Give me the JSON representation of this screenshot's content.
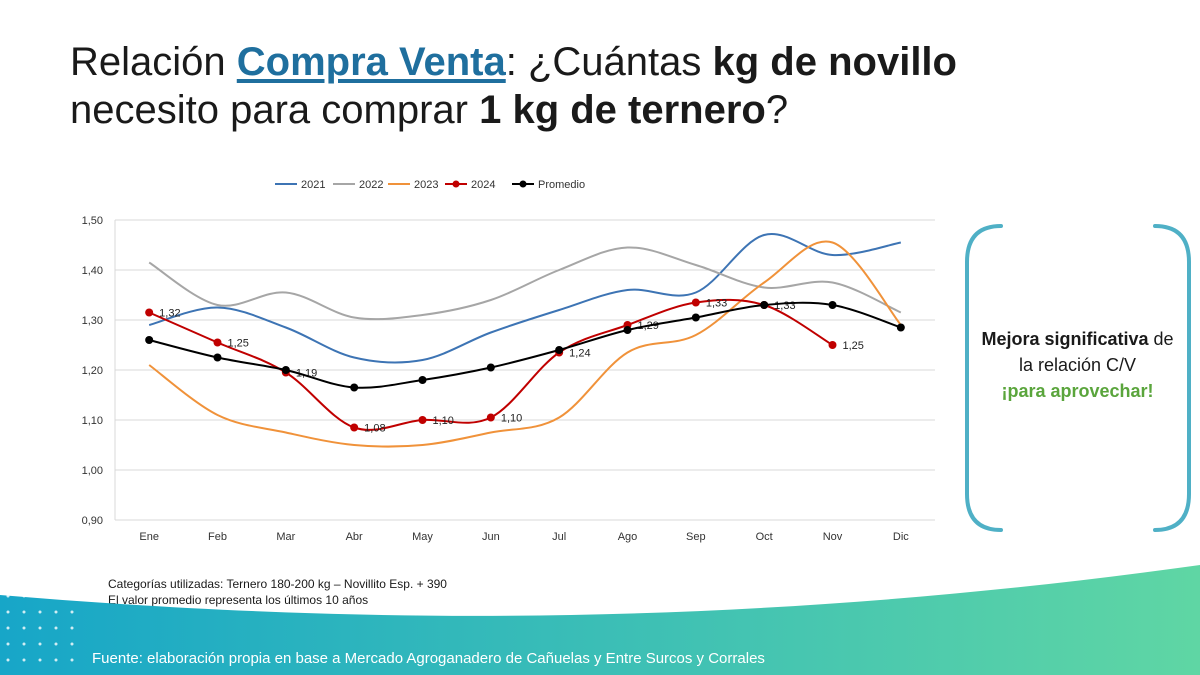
{
  "title": {
    "part1": "Relación ",
    "highlight": "Compra Venta",
    "part2": ": ¿Cuántas ",
    "bold1": "kg de novillo",
    "line2_part1": "necesito para comprar ",
    "bold2": "1 kg de ternero",
    "line2_part2": "?"
  },
  "chart_data": {
    "type": "line",
    "categories": [
      "Ene",
      "Feb",
      "Mar",
      "Abr",
      "May",
      "Jun",
      "Jul",
      "Ago",
      "Sep",
      "Oct",
      "Nov",
      "Dic"
    ],
    "ylim": [
      0.9,
      1.5
    ],
    "yticks": [
      "0,90",
      "1,00",
      "1,10",
      "1,20",
      "1,30",
      "1,40",
      "1,50"
    ],
    "grid": true,
    "legend_position": "top",
    "series": [
      {
        "name": "2021",
        "color": "#3d74b4",
        "markers": false,
        "values": [
          1.29,
          1.325,
          1.285,
          1.225,
          1.22,
          1.275,
          1.32,
          1.36,
          1.355,
          1.47,
          1.43,
          1.455
        ]
      },
      {
        "name": "2022",
        "color": "#a6a6a6",
        "markers": false,
        "values": [
          1.415,
          1.33,
          1.355,
          1.305,
          1.31,
          1.34,
          1.4,
          1.445,
          1.41,
          1.365,
          1.375,
          1.315
        ]
      },
      {
        "name": "2023",
        "color": "#f0923a",
        "markers": false,
        "values": [
          1.21,
          1.11,
          1.075,
          1.05,
          1.05,
          1.075,
          1.105,
          1.235,
          1.27,
          1.375,
          1.455,
          1.29
        ]
      },
      {
        "name": "2024",
        "color": "#c00000",
        "markers": true,
        "values": [
          1.315,
          1.255,
          1.195,
          1.085,
          1.1,
          1.105,
          1.235,
          1.29,
          1.335,
          1.33,
          1.25,
          null
        ],
        "labels": [
          "1,32",
          "1,25",
          "1,19",
          "1,08",
          "1,10",
          "1,10",
          "1,24",
          "1,29",
          "1,33",
          "1,33",
          "1,25",
          ""
        ]
      },
      {
        "name": "Promedio",
        "color": "#000000",
        "markers": true,
        "values": [
          1.26,
          1.225,
          1.2,
          1.165,
          1.18,
          1.205,
          1.24,
          1.28,
          1.305,
          1.33,
          1.33,
          1.285
        ]
      }
    ]
  },
  "callout": {
    "bold": "Mejora significativa",
    "text": " de la relación C/V",
    "green": "¡para aprovechar!"
  },
  "notes": {
    "line1": "Categorías utilizadas: Ternero 180-200 kg – Novillito Esp. + 390",
    "line2": "El valor promedio representa los últimos 10 años"
  },
  "source": "Fuente: elaboración propia en base a Mercado Agroganadero de Cañuelas y Entre Surcos y Corrales",
  "colors": {
    "accent_blue": "#1f6f9e",
    "callout_bracket": "#4fb0c6",
    "highlight_green": "#5aa53c",
    "footer_start": "#17a6c8",
    "footer_end": "#5fd6a4"
  }
}
